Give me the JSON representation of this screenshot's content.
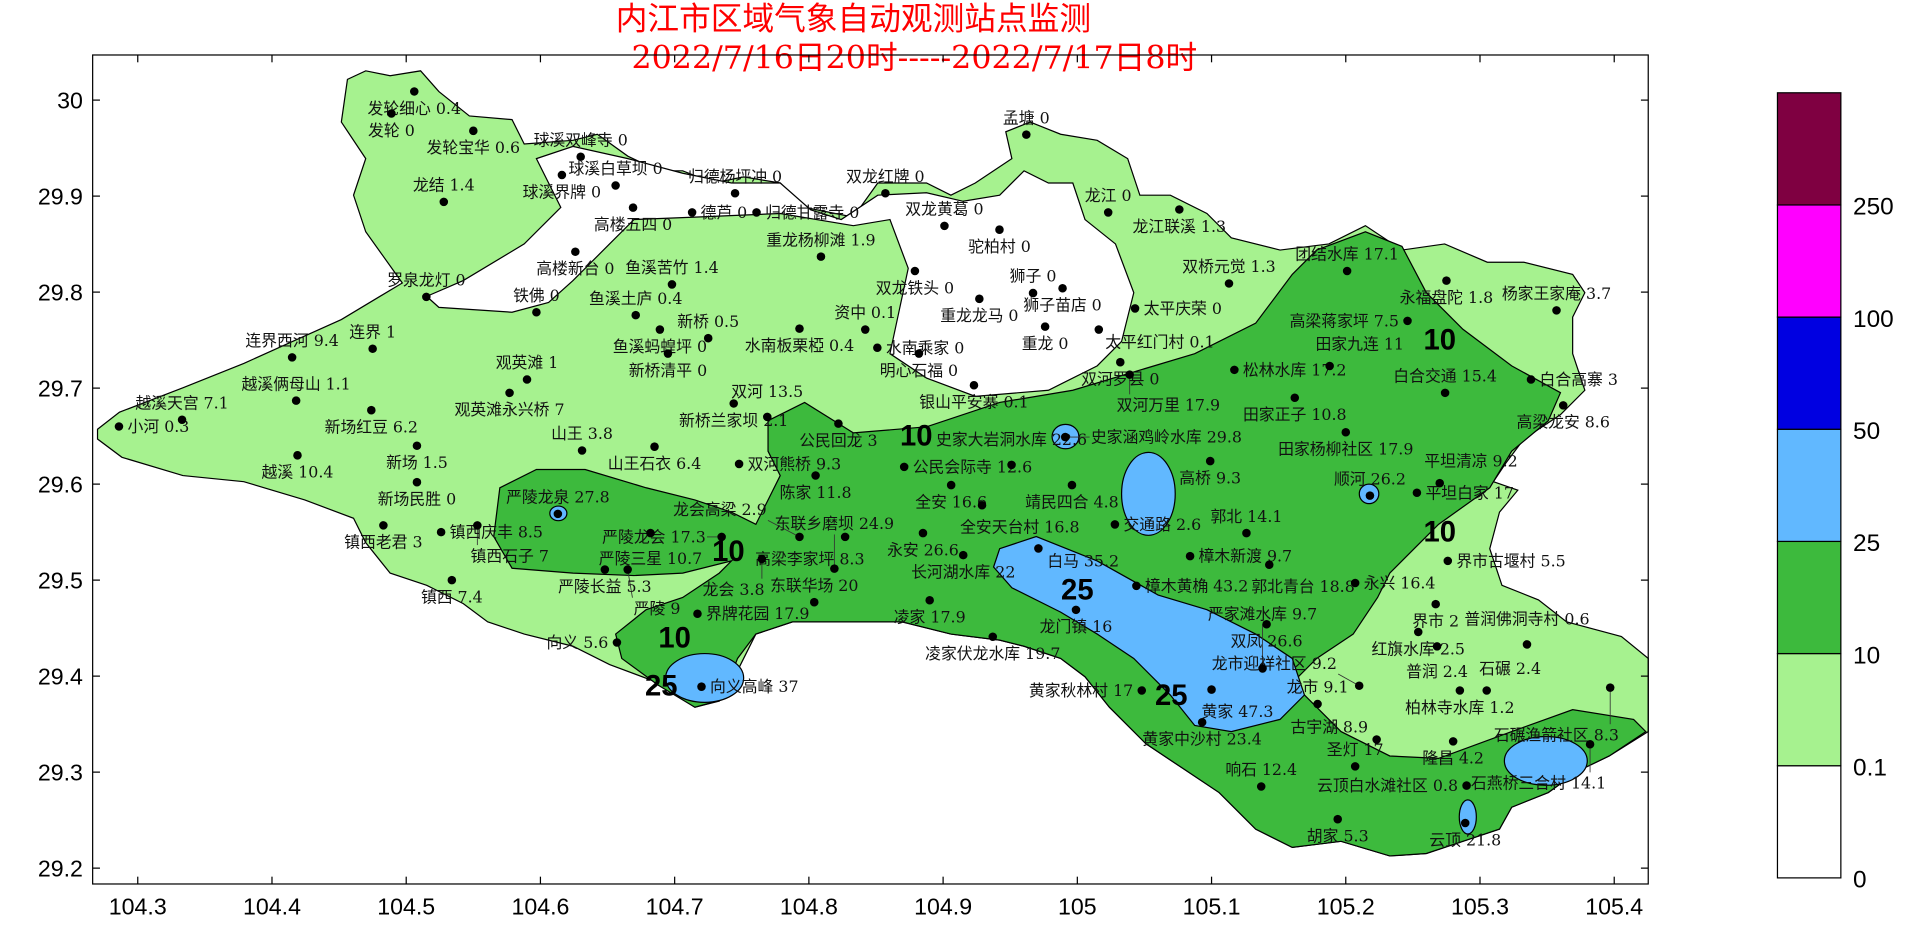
{
  "title": {
    "line1": "内江市区域气象自动观测站点监测",
    "line2": "2022/7/16日20时-----2022/7/17日8时"
  },
  "chart_data": {
    "type": "contour-map",
    "x_axis": {
      "ticks": [
        "104.3",
        "104.4",
        "104.5",
        "104.6",
        "104.7",
        "104.8",
        "104.9",
        "105",
        "105.1",
        "105.2",
        "105.3",
        "105.4"
      ],
      "range": [
        104.26,
        105.44
      ]
    },
    "y_axis": {
      "ticks": [
        "29.2",
        "29.3",
        "29.4",
        "29.5",
        "29.6",
        "29.7",
        "29.8",
        "29.9",
        "30"
      ],
      "range": [
        29.18,
        30.05
      ]
    },
    "legend": {
      "placement": "right",
      "levels": [
        "0",
        "0.1",
        "10",
        "25",
        "50",
        "100",
        "250"
      ],
      "colors": [
        "#ffffff",
        "#a6f28f",
        "#3dba3d",
        "#61b8ff",
        "#0000e1",
        "#ff00ff",
        "#7f0041"
      ]
    },
    "contour_labels": [
      {
        "text": "10",
        "lon": 104.88,
        "lat": 29.64
      },
      {
        "text": "10",
        "lon": 104.74,
        "lat": 29.52
      },
      {
        "text": "10",
        "lon": 104.7,
        "lat": 29.43
      },
      {
        "text": "25",
        "lon": 104.69,
        "lat": 29.38
      },
      {
        "text": "25",
        "lon": 105.0,
        "lat": 29.48
      },
      {
        "text": "25",
        "lon": 105.07,
        "lat": 29.37
      },
      {
        "text": "10",
        "lon": 105.27,
        "lat": 29.74
      },
      {
        "text": "10",
        "lon": 105.27,
        "lat": 29.54
      }
    ],
    "stations": [
      {
        "name": "发轮细心",
        "value": "0.4",
        "lon": 104.506,
        "lat": 30.009
      },
      {
        "name": "发轮",
        "value": "0",
        "lon": 104.489,
        "lat": 29.986
      },
      {
        "name": "发轮宝华",
        "value": "0.6",
        "lon": 104.55,
        "lat": 29.968
      },
      {
        "name": "球溪双峰寺",
        "value": "0",
        "lon": 104.63,
        "lat": 29.941
      },
      {
        "name": "球溪界牌",
        "value": "0",
        "lon": 104.616,
        "lat": 29.922
      },
      {
        "name": "球溪白草坝",
        "value": "0",
        "lon": 104.656,
        "lat": 29.911
      },
      {
        "name": "归德杨坪冲",
        "value": "0",
        "lon": 104.745,
        "lat": 29.903
      },
      {
        "name": "高楼五四",
        "value": "0",
        "lon": 104.669,
        "lat": 29.888
      },
      {
        "name": "德芦",
        "value": "0",
        "lon": 104.713,
        "lat": 29.883
      },
      {
        "name": "归德甘露寺",
        "value": "0",
        "lon": 104.761,
        "lat": 29.883
      },
      {
        "name": "龙结",
        "value": "1.4",
        "lon": 104.528,
        "lat": 29.894
      },
      {
        "name": "高楼新台",
        "value": "0",
        "lon": 104.626,
        "lat": 29.842
      },
      {
        "name": "罗泉龙灯",
        "value": "0",
        "lon": 104.515,
        "lat": 29.795
      },
      {
        "name": "铁佛",
        "value": "0",
        "lon": 104.597,
        "lat": 29.779
      },
      {
        "name": "鱼溪苦竹",
        "value": "1.4",
        "lon": 104.698,
        "lat": 29.808
      },
      {
        "name": "鱼溪土庐",
        "value": "0.4",
        "lon": 104.671,
        "lat": 29.776
      },
      {
        "name": "鱼溪蚂蝗坪",
        "value": "0",
        "lon": 104.689,
        "lat": 29.761
      },
      {
        "name": "新桥清平",
        "value": "0",
        "lon": 104.695,
        "lat": 29.736
      },
      {
        "name": "新桥",
        "value": "0.5",
        "lon": 104.725,
        "lat": 29.752
      },
      {
        "name": "连界",
        "value": "1",
        "lon": 104.475,
        "lat": 29.741
      },
      {
        "name": "连界西河",
        "value": "9.4",
        "lon": 104.415,
        "lat": 29.732
      },
      {
        "name": "双龙红牌",
        "value": "0",
        "lon": 104.857,
        "lat": 29.903
      },
      {
        "name": "重龙杨柳滩",
        "value": "1.9",
        "lon": 104.809,
        "lat": 29.837
      },
      {
        "name": "双龙铁头",
        "value": "0",
        "lon": 104.879,
        "lat": 29.822
      },
      {
        "name": "双龙黄葛",
        "value": "0",
        "lon": 104.901,
        "lat": 29.869
      },
      {
        "name": "驼柏村",
        "value": "0",
        "lon": 104.942,
        "lat": 29.865
      },
      {
        "name": "孟塘",
        "value": "0",
        "lon": 104.962,
        "lat": 29.964
      },
      {
        "name": "龙江",
        "value": "0",
        "lon": 105.023,
        "lat": 29.883
      },
      {
        "name": "龙江联溪",
        "value": "1.3",
        "lon": 105.076,
        "lat": 29.886
      },
      {
        "name": "重龙龙马",
        "value": "0",
        "lon": 104.927,
        "lat": 29.793
      },
      {
        "name": "狮子",
        "value": "0",
        "lon": 104.967,
        "lat": 29.799
      },
      {
        "name": "狮子苗店",
        "value": "0",
        "lon": 104.989,
        "lat": 29.804
      },
      {
        "name": "重龙",
        "value": "0",
        "lon": 104.976,
        "lat": 29.764
      },
      {
        "name": "太平庆荣",
        "value": "0",
        "lon": 105.043,
        "lat": 29.783
      },
      {
        "name": "太平红门村",
        "value": "0.1",
        "lon": 105.016,
        "lat": 29.761
      },
      {
        "name": "资中",
        "value": "0.1",
        "lon": 104.842,
        "lat": 29.761
      },
      {
        "name": "水南板栗椏",
        "value": "0.4",
        "lon": 104.793,
        "lat": 29.762
      },
      {
        "name": "水南乘家",
        "value": "0",
        "lon": 104.851,
        "lat": 29.742
      },
      {
        "name": "明心石福",
        "value": "0",
        "lon": 104.882,
        "lat": 29.736
      },
      {
        "name": "银山平安寨",
        "value": "0.1",
        "lon": 104.923,
        "lat": 29.703
      },
      {
        "name": "双河罗县",
        "value": "0",
        "lon": 105.032,
        "lat": 29.727
      },
      {
        "name": "双河万里",
        "value": "17.9",
        "lon": 105.039,
        "lat": 29.714
      },
      {
        "name": "双桥元觉",
        "value": "1.3",
        "lon": 105.113,
        "lat": 29.809
      },
      {
        "name": "团结水库",
        "value": "17.1",
        "lon": 105.201,
        "lat": 29.822
      },
      {
        "name": "永福盘陀",
        "value": "1.8",
        "lon": 105.275,
        "lat": 29.812
      },
      {
        "name": "高梁蒋家坪",
        "value": "7.5",
        "lon": 105.246,
        "lat": 29.77
      },
      {
        "name": "杨家王家庵",
        "value": "3.7",
        "lon": 105.357,
        "lat": 29.781
      },
      {
        "name": "松林水库",
        "value": "17.2",
        "lon": 105.117,
        "lat": 29.719
      },
      {
        "name": "田家九连",
        "value": "11",
        "lon": 105.188,
        "lat": 29.723
      },
      {
        "name": "田家正子",
        "value": "10.8",
        "lon": 105.162,
        "lat": 29.69
      },
      {
        "name": "田家杨柳社区",
        "value": "17.9",
        "lon": 105.2,
        "lat": 29.654
      },
      {
        "name": "白合交通",
        "value": "15.4",
        "lon": 105.274,
        "lat": 29.695
      },
      {
        "name": "白合高寨",
        "value": "3",
        "lon": 105.338,
        "lat": 29.709
      },
      {
        "name": "高梁龙安",
        "value": "8.6",
        "lon": 105.362,
        "lat": 29.682
      },
      {
        "name": "小河",
        "value": "0.3",
        "lon": 104.286,
        "lat": 29.66
      },
      {
        "name": "越溪天宫",
        "value": "7.1",
        "lon": 104.333,
        "lat": 29.667
      },
      {
        "name": "越溪俩母山",
        "value": "1.1",
        "lon": 104.418,
        "lat": 29.687
      },
      {
        "name": "新场红豆",
        "value": "6.2",
        "lon": 104.474,
        "lat": 29.677
      },
      {
        "name": "新场",
        "value": "1.5",
        "lon": 104.508,
        "lat": 29.64
      },
      {
        "name": "越溪",
        "value": "10.4",
        "lon": 104.419,
        "lat": 29.63
      },
      {
        "name": "观英滩",
        "value": "1",
        "lon": 104.59,
        "lat": 29.709
      },
      {
        "name": "观英滩永兴桥",
        "value": "7",
        "lon": 104.577,
        "lat": 29.695
      },
      {
        "name": "新场民胜",
        "value": "0",
        "lon": 104.508,
        "lat": 29.602
      },
      {
        "name": "新桥兰家坝",
        "value": "2.1",
        "lon": 104.744,
        "lat": 29.684
      },
      {
        "name": "双河",
        "value": "13.5",
        "lon": 104.769,
        "lat": 29.67
      },
      {
        "name": "公民回龙",
        "value": "3",
        "lon": 104.822,
        "lat": 29.663
      },
      {
        "name": "山王",
        "value": "3.8",
        "lon": 104.631,
        "lat": 29.635
      },
      {
        "name": "山王石衣",
        "value": "6.4",
        "lon": 104.685,
        "lat": 29.639
      },
      {
        "name": "双河熊桥",
        "value": "9.3",
        "lon": 104.748,
        "lat": 29.621
      },
      {
        "name": "陈家",
        "value": "11.8",
        "lon": 104.805,
        "lat": 29.609
      },
      {
        "name": "公民会际寺",
        "value": "12.6",
        "lon": 104.871,
        "lat": 29.618
      },
      {
        "name": "史家大岩洞水库",
        "value": "22.6",
        "lon": 104.951,
        "lat": 29.62
      },
      {
        "name": "史家涵鸡岭水库",
        "value": "29.8",
        "lon": 104.991,
        "lat": 29.649
      },
      {
        "name": "靖民四合",
        "value": "4.8",
        "lon": 104.996,
        "lat": 29.599
      },
      {
        "name": "高桥",
        "value": "9.3",
        "lon": 105.099,
        "lat": 29.624
      },
      {
        "name": "全安",
        "value": "16.6",
        "lon": 104.906,
        "lat": 29.599
      },
      {
        "name": "全安天台村",
        "value": "16.8",
        "lon": 104.929,
        "lat": 29.578
      },
      {
        "name": "永安",
        "value": "26.6",
        "lon": 104.885,
        "lat": 29.549
      },
      {
        "name": "长河湖水库",
        "value": "22",
        "lon": 104.915,
        "lat": 29.526
      },
      {
        "name": "白马",
        "value": "35.2",
        "lon": 104.971,
        "lat": 29.533
      },
      {
        "name": "交通路",
        "value": "2.6",
        "lon": 105.028,
        "lat": 29.558
      },
      {
        "name": "樟木黄桷",
        "value": "43.2",
        "lon": 105.044,
        "lat": 29.494
      },
      {
        "name": "樟木新渡",
        "value": "9.7",
        "lon": 105.084,
        "lat": 29.525
      },
      {
        "name": "郭北",
        "value": "14.1",
        "lon": 105.126,
        "lat": 29.549
      },
      {
        "name": "郭北青台",
        "value": "18.8",
        "lon": 105.143,
        "lat": 29.516
      },
      {
        "name": "永兴",
        "value": "16.4",
        "lon": 105.207,
        "lat": 29.497
      },
      {
        "name": "顺河",
        "value": "26.2",
        "lon": 105.218,
        "lat": 29.588
      },
      {
        "name": "平坦白家",
        "value": "17",
        "lon": 105.253,
        "lat": 29.591
      },
      {
        "name": "平坦清凉",
        "value": "9.2",
        "lon": 105.27,
        "lat": 29.601
      },
      {
        "name": "界市古堰村",
        "value": "5.5",
        "lon": 105.276,
        "lat": 29.52
      },
      {
        "name": "界市",
        "value": "2",
        "lon": 105.267,
        "lat": 29.475
      },
      {
        "name": "红旗水库",
        "value": "2.5",
        "lon": 105.254,
        "lat": 29.446
      },
      {
        "name": "普润",
        "value": "2.4",
        "lon": 105.268,
        "lat": 29.431
      },
      {
        "name": "普润佛洞寺村",
        "value": "0.6",
        "lon": 105.335,
        "lat": 29.433
      },
      {
        "name": "柏林寺水库",
        "value": "1.2",
        "lon": 105.285,
        "lat": 29.385
      },
      {
        "name": "石碾",
        "value": "2.4",
        "lon": 105.305,
        "lat": 29.385
      },
      {
        "name": "石碾渔箭社区",
        "value": "8.3",
        "lon": 105.397,
        "lat": 29.388
      },
      {
        "name": "隆昌",
        "value": "4.2",
        "lon": 105.28,
        "lat": 29.332
      },
      {
        "name": "石燕桥三合村",
        "value": "14.1",
        "lon": 105.382,
        "lat": 29.329
      },
      {
        "name": "云顶白水滩社区",
        "value": "0.8",
        "lon": 105.29,
        "lat": 29.286
      },
      {
        "name": "云顶",
        "value": "21.8",
        "lon": 105.289,
        "lat": 29.247
      },
      {
        "name": "胡家",
        "value": "5.3",
        "lon": 105.194,
        "lat": 29.251
      },
      {
        "name": "响石",
        "value": "12.4",
        "lon": 105.137,
        "lat": 29.285
      },
      {
        "name": "圣灯",
        "value": "17",
        "lon": 105.207,
        "lat": 29.306
      },
      {
        "name": "古宇湖",
        "value": "8.9",
        "lon": 105.223,
        "lat": 29.334
      },
      {
        "name": "龙市",
        "value": "9.1",
        "lon": 105.179,
        "lat": 29.371
      },
      {
        "name": "龙市迎祥社区",
        "value": "9.2",
        "lon": 105.21,
        "lat": 29.39
      },
      {
        "name": "双凤",
        "value": "26.6",
        "lon": 105.141,
        "lat": 29.454
      },
      {
        "name": "严家滩水库",
        "value": "9.7",
        "lon": 105.138,
        "lat": 29.408
      },
      {
        "name": "黄家",
        "value": "47.3",
        "lon": 105.1,
        "lat": 29.386
      },
      {
        "name": "黄家中沙村",
        "value": "23.4",
        "lon": 105.093,
        "lat": 29.352
      },
      {
        "name": "黄家秋林村",
        "value": "17",
        "lon": 105.048,
        "lat": 29.385
      },
      {
        "name": "龙门镇",
        "value": "16",
        "lon": 104.999,
        "lat": 29.469
      },
      {
        "name": "凌家",
        "value": "17.9",
        "lon": 104.89,
        "lat": 29.479
      },
      {
        "name": "凌家伏龙水库",
        "value": "19.7",
        "lon": 104.937,
        "lat": 29.441
      },
      {
        "name": "东联华场",
        "value": "20",
        "lon": 104.804,
        "lat": 29.477
      },
      {
        "name": "东联乡磨坝",
        "value": "24.9",
        "lon": 104.819,
        "lat": 29.512
      },
      {
        "name": "高梁李家坪",
        "value": "8.3",
        "lon": 104.827,
        "lat": 29.545
      },
      {
        "name": "龙会高梁",
        "value": "2.9",
        "lon": 104.793,
        "lat": 29.545
      },
      {
        "name": "龙会",
        "value": "3.8",
        "lon": 104.765,
        "lat": 29.522
      },
      {
        "name": "严陵龙会",
        "value": "17.3",
        "lon": 104.735,
        "lat": 29.545
      },
      {
        "name": "严陵龙泉",
        "value": "27.8",
        "lon": 104.613,
        "lat": 29.569
      },
      {
        "name": "严陵三星",
        "value": "10.7",
        "lon": 104.682,
        "lat": 29.549
      },
      {
        "name": "镇西老君",
        "value": "3",
        "lon": 104.483,
        "lat": 29.557
      },
      {
        "name": "镇西庆丰",
        "value": "8.5",
        "lon": 104.526,
        "lat": 29.55
      },
      {
        "name": "镇西石子",
        "value": "7",
        "lon": 104.553,
        "lat": 29.557
      },
      {
        "name": "严陵长益",
        "value": "5.3",
        "lon": 104.648,
        "lat": 29.511
      },
      {
        "name": "严陵",
        "value": "9",
        "lon": 104.665,
        "lat": 29.511
      },
      {
        "name": "镇西",
        "value": "7.4",
        "lon": 104.534,
        "lat": 29.5
      },
      {
        "name": "界牌花园",
        "value": "17.9",
        "lon": 104.717,
        "lat": 29.465
      },
      {
        "name": "向义",
        "value": "5.6",
        "lon": 104.657,
        "lat": 29.435
      },
      {
        "name": "向义高峰",
        "value": "37",
        "lon": 104.72,
        "lat": 29.389
      }
    ]
  }
}
